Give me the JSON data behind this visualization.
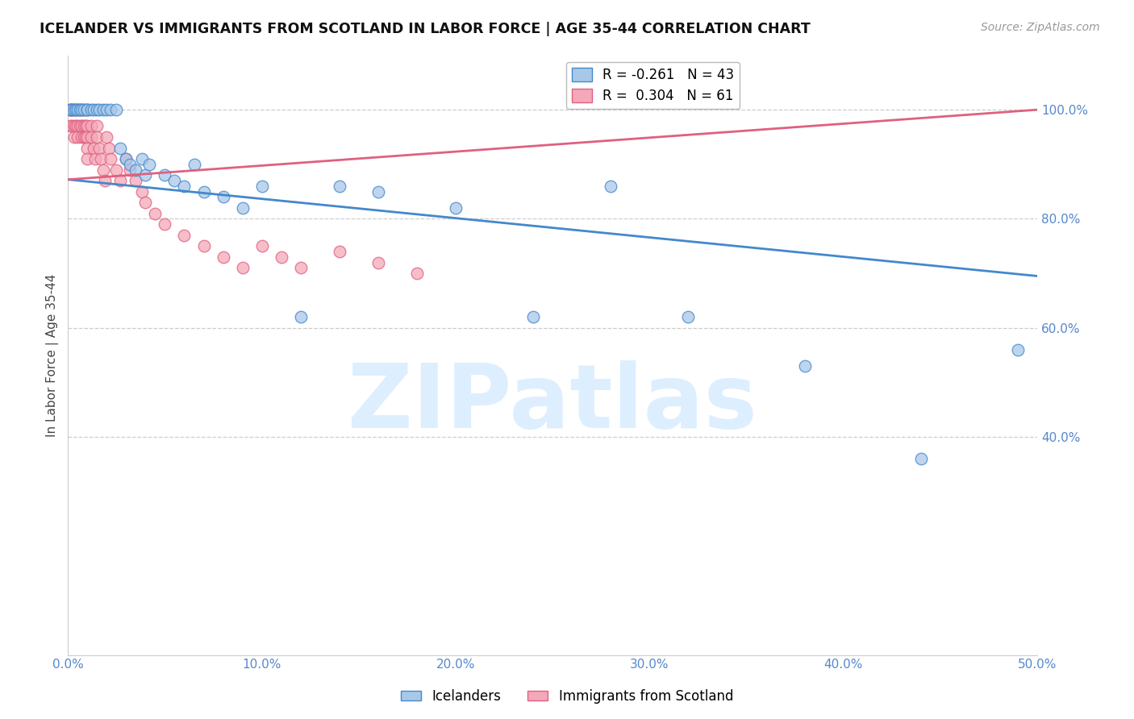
{
  "title": "ICELANDER VS IMMIGRANTS FROM SCOTLAND IN LABOR FORCE | AGE 35-44 CORRELATION CHART",
  "source": "Source: ZipAtlas.com",
  "ylabel": "In Labor Force | Age 35-44",
  "legend_label_blue": "Icelanders",
  "legend_label_pink": "Immigrants from Scotland",
  "R_blue": -0.261,
  "N_blue": 43,
  "R_pink": 0.304,
  "N_pink": 61,
  "xlim": [
    0.0,
    0.5
  ],
  "ylim": [
    0.0,
    1.1
  ],
  "xticks": [
    0.0,
    0.1,
    0.2,
    0.3,
    0.4,
    0.5
  ],
  "yticks": [
    0.8,
    1.0
  ],
  "ytick_extra": [
    0.6,
    0.4
  ],
  "color_blue": "#a8c8e8",
  "color_pink": "#f4a8b8",
  "line_color_blue": "#4488cc",
  "line_color_pink": "#e06080",
  "watermark": "ZIPatlas",
  "watermark_color": "#ddeeff",
  "blue_x": [
    0.001,
    0.002,
    0.003,
    0.004,
    0.005,
    0.006,
    0.007,
    0.008,
    0.01,
    0.01,
    0.012,
    0.013,
    0.015,
    0.016,
    0.018,
    0.02,
    0.022,
    0.025,
    0.027,
    0.03,
    0.032,
    0.035,
    0.038,
    0.04,
    0.042,
    0.05,
    0.055,
    0.06,
    0.065,
    0.07,
    0.08,
    0.09,
    0.1,
    0.12,
    0.14,
    0.16,
    0.2,
    0.24,
    0.28,
    0.32,
    0.38,
    0.44,
    0.49
  ],
  "blue_y": [
    1.0,
    1.0,
    1.0,
    1.0,
    1.0,
    1.0,
    1.0,
    1.0,
    1.0,
    1.0,
    1.0,
    1.0,
    1.0,
    1.0,
    1.0,
    1.0,
    1.0,
    1.0,
    0.93,
    0.91,
    0.9,
    0.89,
    0.91,
    0.88,
    0.9,
    0.88,
    0.87,
    0.86,
    0.9,
    0.85,
    0.84,
    0.82,
    0.86,
    0.62,
    0.86,
    0.85,
    0.82,
    0.62,
    0.86,
    0.62,
    0.53,
    0.36,
    0.56
  ],
  "pink_x": [
    0.001,
    0.001,
    0.001,
    0.002,
    0.002,
    0.002,
    0.003,
    0.003,
    0.003,
    0.004,
    0.004,
    0.005,
    0.005,
    0.005,
    0.006,
    0.006,
    0.007,
    0.007,
    0.007,
    0.008,
    0.008,
    0.008,
    0.009,
    0.009,
    0.01,
    0.01,
    0.01,
    0.01,
    0.01,
    0.012,
    0.012,
    0.013,
    0.014,
    0.015,
    0.015,
    0.016,
    0.017,
    0.018,
    0.019,
    0.02,
    0.021,
    0.022,
    0.025,
    0.027,
    0.03,
    0.032,
    0.035,
    0.038,
    0.04,
    0.045,
    0.05,
    0.06,
    0.07,
    0.08,
    0.09,
    0.1,
    0.11,
    0.12,
    0.14,
    0.16,
    0.18
  ],
  "pink_y": [
    1.0,
    1.0,
    0.97,
    1.0,
    1.0,
    0.97,
    1.0,
    0.97,
    0.95,
    1.0,
    0.97,
    1.0,
    0.97,
    0.95,
    1.0,
    0.97,
    1.0,
    0.97,
    0.95,
    1.0,
    0.97,
    0.95,
    0.97,
    0.95,
    1.0,
    0.97,
    0.95,
    0.93,
    0.91,
    0.97,
    0.95,
    0.93,
    0.91,
    0.97,
    0.95,
    0.93,
    0.91,
    0.89,
    0.87,
    0.95,
    0.93,
    0.91,
    0.89,
    0.87,
    0.91,
    0.89,
    0.87,
    0.85,
    0.83,
    0.81,
    0.79,
    0.77,
    0.75,
    0.73,
    0.71,
    0.75,
    0.73,
    0.71,
    0.74,
    0.72,
    0.7
  ],
  "blue_line_x0": 0.0,
  "blue_line_x1": 0.5,
  "blue_line_y0": 0.872,
  "blue_line_y1": 0.695,
  "pink_line_x0": 0.0,
  "pink_line_x1": 0.5,
  "pink_line_y0": 0.872,
  "pink_line_y1": 1.0
}
